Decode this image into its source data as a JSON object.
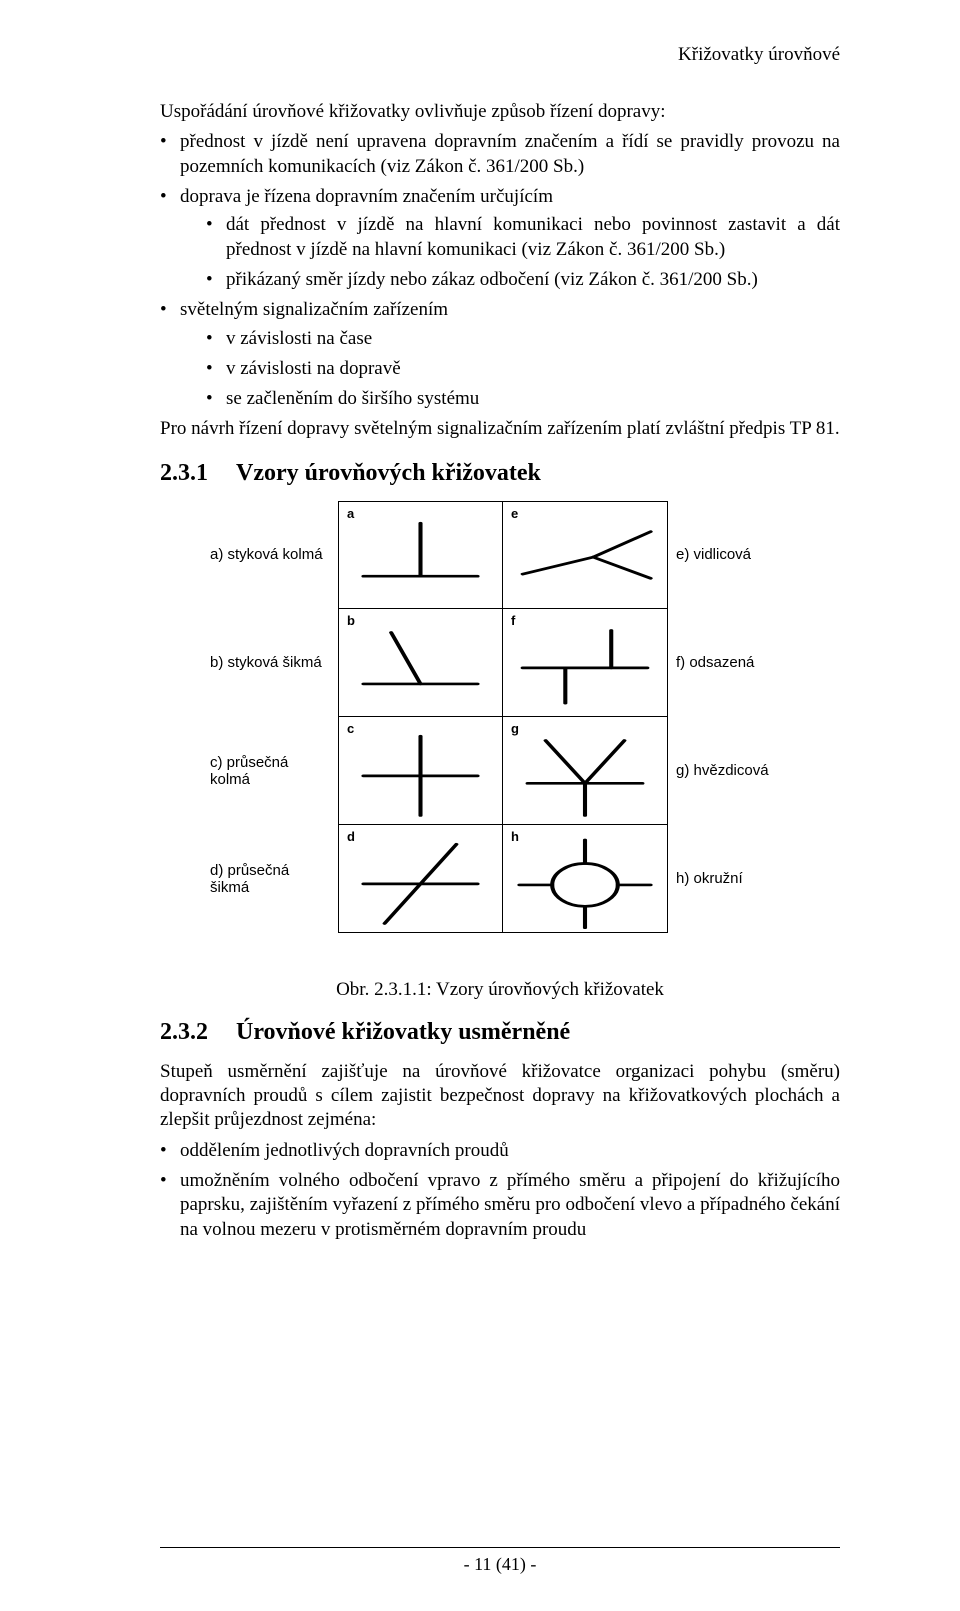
{
  "header": {
    "running_title": "Křižovatky úrovňové"
  },
  "para": {
    "intro": "Uspořádání úrovňové křižovatky ovlivňuje způsob řízení dopravy:"
  },
  "list1": {
    "item1": "přednost v jízdě není upravena dopravním značením a řídí se pravidly provozu na pozemních komunikacích (viz Zákon č. 361/200 Sb.)",
    "item2": "doprava je řízena dopravním značením určujícím",
    "item2_sub1": "dát přednost v jízdě na hlavní komunikaci nebo povinnost zastavit a dát přednost v jízdě na hlavní komunikaci (viz Zákon č. 361/200 Sb.)",
    "item2_sub2": "přikázaný směr jízdy nebo zákaz odbočení (viz Zákon č. 361/200 Sb.)",
    "item3": "světelným signalizačním zařízením",
    "item3_sub1": "v závislosti na čase",
    "item3_sub2": "v závislosti na dopravě",
    "item3_sub3": "se začleněním do širšího systému"
  },
  "para2": "Pro návrh řízení dopravy světelným signalizačním zařízením platí zvláštní předpis TP 81.",
  "section231": {
    "num": "2.3.1",
    "title": "Vzory úrovňových křižovatek"
  },
  "figure": {
    "rows": [
      {
        "left": "a) styková kolmá",
        "ltag": "a",
        "rtag": "e",
        "right": "e) vidlicová",
        "ltype": "t-up",
        "rtype": "fork"
      },
      {
        "left": "b) styková šikmá",
        "ltag": "b",
        "rtag": "f",
        "right": "f) odsazená",
        "ltype": "t-skew",
        "rtype": "offset"
      },
      {
        "left": "c) průsečná kolmá",
        "ltag": "c",
        "rtag": "g",
        "right": "g) hvězdicová",
        "ltype": "cross",
        "rtype": "star"
      },
      {
        "left": "d) průsečná šikmá",
        "ltag": "d",
        "rtag": "h",
        "right": "h) okružní",
        "ltype": "x-skew",
        "rtype": "round"
      }
    ],
    "caption": "Obr. 2.3.1.1: Vzory úrovňových křižovatek",
    "stroke": "#000000",
    "stroke_width": 2.5
  },
  "section232": {
    "num": "2.3.2",
    "title": "Úrovňové křižovatky usměrněné"
  },
  "para3": "Stupeň usměrnění zajišťuje na úrovňové křižovatce organizaci pohybu (směru) dopravních proudů s cílem zajistit bezpečnost dopravy na křižovatkových plochách a zlepšit průjezdnost zejména:",
  "list2": {
    "item1": "oddělením jednotlivých dopravních proudů",
    "item2": "umožněním volného odbočení vpravo z přímého směru a připojení do křižujícího paprsku, zajištěním vyřazení z přímého směru pro odbočení vlevo a případného čekání na volnou mezeru v protisměrném dopravním proudu"
  },
  "footer": {
    "page": "- 11 (41) -"
  }
}
